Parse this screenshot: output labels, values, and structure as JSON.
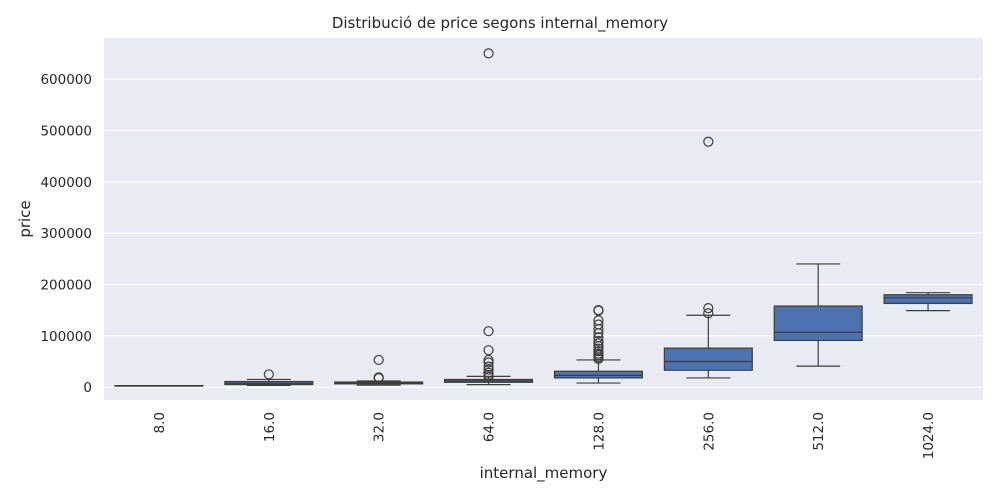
{
  "chart_data": {
    "type": "boxplot",
    "title": "Distribució de price segons internal_memory",
    "xlabel": "internal_memory",
    "ylabel": "price",
    "categories": [
      "8.0",
      "16.0",
      "32.0",
      "64.0",
      "128.0",
      "256.0",
      "512.0",
      "1024.0"
    ],
    "yticks": [
      0,
      100000,
      200000,
      300000,
      400000,
      500000,
      600000
    ],
    "ylim": [
      -25000,
      680000
    ],
    "grid": true,
    "colors": {
      "box": "#4c72b0",
      "background": "#eaeaf2",
      "grid": "#ffffff",
      "line": "#3d3d3d"
    },
    "boxes": [
      {
        "category": "8.0",
        "whisker_low": 3000,
        "q1": 3000,
        "median": 3000,
        "q3": 3000,
        "whisker_high": 3000,
        "outliers": []
      },
      {
        "category": "16.0",
        "whisker_low": 3500,
        "q1": 5000,
        "median": 7500,
        "q3": 11000,
        "whisker_high": 15000,
        "outliers": [
          25000
        ]
      },
      {
        "category": "32.0",
        "whisker_low": 4000,
        "q1": 6500,
        "median": 8000,
        "q3": 10000,
        "whisker_high": 12000,
        "outliers": [
          53000,
          19000,
          17500
        ]
      },
      {
        "category": "64.0",
        "whisker_low": 5000,
        "q1": 9500,
        "median": 12000,
        "q3": 15000,
        "whisker_high": 21000,
        "outliers": [
          650000,
          109000,
          72000,
          53000,
          48000,
          40000,
          34000,
          28000,
          24000,
          20000
        ]
      },
      {
        "category": "128.0",
        "whisker_low": 8000,
        "q1": 18000,
        "median": 23000,
        "q3": 31000,
        "whisker_high": 53000,
        "outliers": [
          150000,
          149000,
          130000,
          122000,
          113000,
          105000,
          97000,
          90000,
          85000,
          80000,
          75000,
          70000,
          65000,
          62000,
          58000,
          55000
        ]
      },
      {
        "category": "256.0",
        "whisker_low": 18000,
        "q1": 33000,
        "median": 50000,
        "q3": 76000,
        "whisker_high": 140000,
        "outliers": [
          478000,
          154000,
          144000
        ]
      },
      {
        "category": "512.0",
        "whisker_low": 41000,
        "q1": 91000,
        "median": 107000,
        "q3": 158000,
        "whisker_high": 240000,
        "outliers": []
      },
      {
        "category": "1024.0",
        "whisker_low": 149000,
        "q1": 163000,
        "median": 174000,
        "q3": 180000,
        "whisker_high": 184000,
        "outliers": []
      }
    ]
  }
}
